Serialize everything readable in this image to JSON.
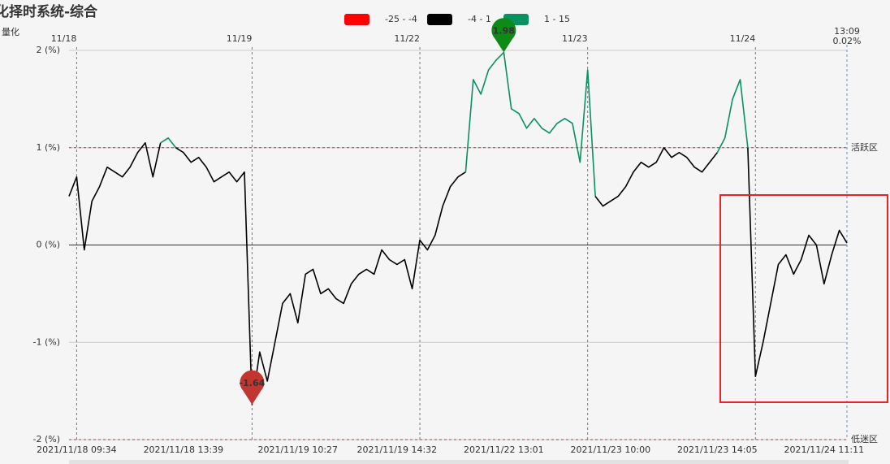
{
  "chart_data": {
    "type": "line",
    "title": "化择时系统-综合",
    "subtitle": "量化",
    "pieces": [
      {
        "label": "-25 - -4",
        "color": "#ff0000",
        "min": -25,
        "max": -4
      },
      {
        "label": "-4 - 1",
        "color": "#000000",
        "min": -4,
        "max": 1
      },
      {
        "label": "1 - 15",
        "color": "#0a9160",
        "min": 1,
        "max": 15
      }
    ],
    "categories": [
      null,
      "2021/11/18 09:34",
      null,
      null,
      null,
      null,
      null,
      null,
      null,
      null,
      null,
      null,
      null,
      null,
      null,
      "2021/11/18 13:39",
      null,
      null,
      null,
      null,
      null,
      null,
      null,
      null,
      null,
      null,
      null,
      null,
      null,
      null,
      "2021/11/19 10:27",
      null,
      null,
      null,
      null,
      null,
      null,
      null,
      null,
      null,
      null,
      null,
      null,
      "2021/11/19 14:32",
      null,
      null,
      null,
      null,
      null,
      null,
      null,
      null,
      null,
      null,
      null,
      null,
      null,
      "2021/11/22 13:01",
      null,
      null,
      null,
      null,
      null,
      null,
      null,
      null,
      null,
      null,
      null,
      null,
      null,
      "2021/11/23 10:00",
      null,
      null,
      null,
      null,
      null,
      null,
      null,
      null,
      null,
      null,
      null,
      null,
      null,
      "2021/11/23 14:05",
      null,
      null,
      null,
      null,
      null,
      null,
      null,
      null,
      null,
      null,
      null,
      null,
      null,
      "2021/11/24 11:11",
      null,
      null,
      null
    ],
    "day_labels": [
      null,
      "11/18",
      null,
      null,
      null,
      null,
      null,
      null,
      null,
      null,
      null,
      null,
      null,
      null,
      null,
      null,
      null,
      null,
      null,
      null,
      null,
      null,
      null,
      null,
      "11/19",
      null,
      null,
      null,
      null,
      null,
      null,
      null,
      null,
      null,
      null,
      null,
      null,
      null,
      null,
      null,
      null,
      null,
      null,
      null,
      null,
      null,
      "11/22",
      null,
      null,
      null,
      null,
      null,
      null,
      null,
      null,
      null,
      null,
      null,
      null,
      null,
      null,
      null,
      null,
      null,
      null,
      null,
      null,
      null,
      "11/23",
      null,
      null,
      null,
      null,
      null,
      null,
      null,
      null,
      null,
      null,
      null,
      null,
      null,
      null,
      null,
      null,
      null,
      null,
      null,
      null,
      null,
      "11/24",
      null,
      null,
      null,
      null,
      null,
      null,
      null,
      null,
      null,
      null,
      null,
      null
    ],
    "values": [
      0.5,
      0.7,
      -0.05,
      0.45,
      0.6,
      0.8,
      0.75,
      0.7,
      0.8,
      0.95,
      1.05,
      0.7,
      1.05,
      1.1,
      1.0,
      0.95,
      0.85,
      0.9,
      0.8,
      0.65,
      0.7,
      0.75,
      0.65,
      0.75,
      -1.64,
      -1.1,
      -1.4,
      -1.0,
      -0.6,
      -0.5,
      -0.8,
      -0.3,
      -0.25,
      -0.5,
      -0.45,
      -0.55,
      -0.6,
      -0.4,
      -0.3,
      -0.25,
      -0.3,
      -0.05,
      -0.15,
      -0.2,
      -0.15,
      -0.45,
      0.05,
      -0.05,
      0.1,
      0.4,
      0.6,
      0.7,
      0.75,
      1.7,
      1.55,
      1.8,
      1.9,
      1.98,
      1.4,
      1.35,
      1.2,
      1.3,
      1.2,
      1.15,
      1.25,
      1.3,
      1.25,
      0.85,
      1.8,
      0.5,
      0.4,
      0.45,
      0.5,
      0.6,
      0.75,
      0.85,
      0.8,
      0.85,
      1.0,
      0.9,
      0.95,
      0.9,
      0.8,
      0.75,
      0.85,
      0.95,
      1.1,
      1.5,
      1.7,
      1.0,
      -1.35,
      -1.0,
      -0.6,
      -0.2,
      -0.1,
      -0.3,
      -0.15,
      0.1,
      0.0,
      -0.4,
      -0.1,
      0.15,
      0.02
    ],
    "current": {
      "time": "13:09",
      "label": "0.02%"
    },
    "ylim": [
      -2,
      2
    ],
    "yticks": [
      {
        "value": -2,
        "label": "-2 (%)"
      },
      {
        "value": -1,
        "label": "-1 (%)"
      },
      {
        "value": 0,
        "label": "0 (%)"
      },
      {
        "value": 1,
        "label": "1 (%)"
      },
      {
        "value": 2,
        "label": "2 (%)"
      }
    ],
    "mark_lines": [
      {
        "value": 1,
        "label": "活跃区"
      },
      {
        "value": -2,
        "label": "低迷区"
      }
    ],
    "grid": true
  }
}
